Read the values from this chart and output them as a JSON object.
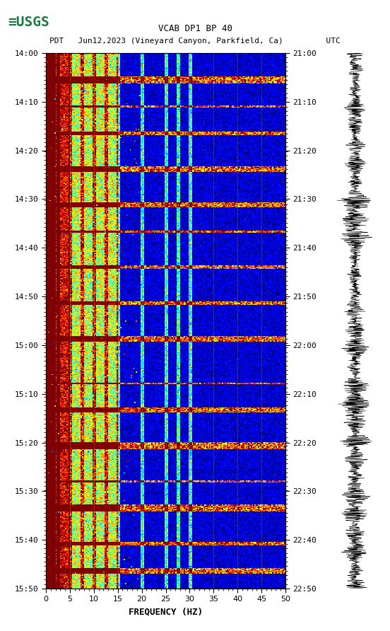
{
  "title_line1": "VCAB DP1 BP 40",
  "title_line2": "PDT   Jun12,2023 (Vineyard Canyon, Parkfield, Ca)         UTC",
  "xlabel": "FREQUENCY (HZ)",
  "freq_min": 0,
  "freq_max": 50,
  "freq_ticks": [
    0,
    5,
    10,
    15,
    20,
    25,
    30,
    35,
    40,
    45,
    50
  ],
  "time_start_pdt": "14:00",
  "time_end_pdt": "15:50",
  "time_start_utc": "21:00",
  "time_end_utc": "22:50",
  "pdt_labels": [
    "14:00",
    "14:10",
    "14:20",
    "14:30",
    "14:40",
    "14:50",
    "15:00",
    "15:10",
    "15:20",
    "15:30",
    "15:40",
    "15:50"
  ],
  "utc_labels": [
    "21:00",
    "21:10",
    "21:20",
    "21:30",
    "21:40",
    "21:50",
    "22:00",
    "22:10",
    "22:20",
    "22:30",
    "22:40",
    "22:50"
  ],
  "background_color": "#ffffff",
  "spectrogram_aspect": "auto",
  "colormap": "jet",
  "grid_color": "#808080",
  "grid_alpha": 0.5,
  "fig_width": 5.52,
  "fig_height": 8.92,
  "dpi": 100,
  "usgs_color": "#1a7a3e"
}
